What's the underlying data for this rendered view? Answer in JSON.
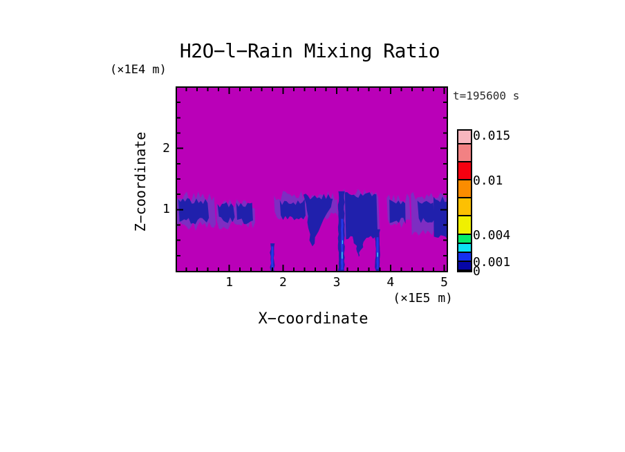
{
  "chart_data": {
    "type": "heatmap",
    "title": "H2O−l−Rain Mixing Ratio",
    "timestamp": "t=195600 s",
    "x_axis": {
      "label": "X−coordinate",
      "unit": "(×1E5 m)",
      "range": [
        0,
        5.07
      ],
      "major_ticks": [
        1,
        2,
        3,
        4,
        5
      ],
      "minor_step": 0.2
    },
    "z_axis": {
      "label": "Z−coordinate",
      "unit": "(×1E4 m)",
      "range": [
        0,
        3.0
      ],
      "major_ticks": [
        1,
        2
      ],
      "minor_step": 0.25
    },
    "colorbar": {
      "max_value": 0.0155,
      "levels": [
        0,
        0.001,
        0.002,
        0.003,
        0.004,
        0.006,
        0.008,
        0.01,
        0.012,
        0.014,
        0.0155
      ],
      "colors_bottom_to_top": [
        "#0606A8",
        "#1430F0",
        "#0CE2F4",
        "#06EC6A",
        "#F0F000",
        "#FDC002",
        "#FB8C00",
        "#F50010",
        "#F28183",
        "#F8B6BE"
      ],
      "labels": [
        {
          "text": "0.015",
          "value": 0.015
        },
        {
          "text": "0.01",
          "value": 0.01
        },
        {
          "text": "0.004",
          "value": 0.004
        },
        {
          "text": "0.001",
          "value": 0.001
        },
        {
          "text": "0",
          "value": 0
        }
      ]
    },
    "field": {
      "background_color": "#BA00B8",
      "palette": {
        "fringe": "#7E2DC2",
        "navy": "#2020AC",
        "royal": "#2438E8",
        "cyan": "#38C8F0"
      },
      "rain_patches": [
        {
          "kind": "fringe",
          "x0": 0.0,
          "x1": 0.75,
          "z0": 0.7,
          "z1": 1.24,
          "seed": 11
        },
        {
          "kind": "fringe",
          "x0": 0.76,
          "x1": 1.48,
          "z0": 0.74,
          "z1": 1.12,
          "seed": 12
        },
        {
          "kind": "fringe",
          "x0": 1.83,
          "x1": 3.02,
          "z0": 0.88,
          "z1": 1.25,
          "seed": 13
        },
        {
          "kind": "fringe",
          "x0": 3.1,
          "x1": 3.8,
          "z0": 0.55,
          "z1": 1.28,
          "seed": 14
        },
        {
          "kind": "fringe",
          "x0": 3.93,
          "x1": 4.37,
          "z0": 0.76,
          "z1": 1.2,
          "seed": 15
        },
        {
          "kind": "fringe",
          "x0": 4.38,
          "x1": 5.07,
          "z0": 0.62,
          "z1": 1.26,
          "seed": 16
        },
        {
          "kind": "cell",
          "x0": 0.05,
          "x1": 0.62,
          "z0": 0.8,
          "z1": 1.16,
          "seed": 21
        },
        {
          "kind": "cell",
          "x0": 0.78,
          "x1": 1.1,
          "z0": 0.82,
          "z1": 1.08,
          "seed": 22
        },
        {
          "kind": "cell",
          "x0": 1.13,
          "x1": 1.44,
          "z0": 0.8,
          "z1": 1.1,
          "seed": 23
        },
        {
          "kind": "cell",
          "x0": 1.94,
          "x1": 2.42,
          "z0": 0.84,
          "z1": 1.14,
          "seed": 24
        },
        {
          "kind": "vplume",
          "x0": 2.38,
          "x1": 2.96,
          "ztop": 1.22,
          "ax": 2.54,
          "az": 0.4,
          "seed": 25
        },
        {
          "kind": "cell",
          "x0": 3.15,
          "x1": 3.76,
          "z0": 0.55,
          "z1": 1.26,
          "seed": 26
        },
        {
          "kind": "tongue",
          "x0": 3.28,
          "x1": 3.56,
          "ztop": 0.6,
          "ax": 3.41,
          "az": 0.23,
          "seed": 27
        },
        {
          "kind": "cell",
          "x0": 3.98,
          "x1": 4.28,
          "z0": 0.8,
          "z1": 1.14,
          "seed": 28
        },
        {
          "kind": "cell",
          "x0": 4.5,
          "x1": 4.82,
          "z0": 0.8,
          "z1": 1.12,
          "seed": 29
        },
        {
          "kind": "cell",
          "x0": 4.8,
          "x1": 5.06,
          "z0": 0.55,
          "z1": 1.18,
          "seed": 30
        },
        {
          "kind": "shaft",
          "x0": 1.765,
          "x1": 1.835,
          "z0": 0,
          "z1": 0.45,
          "seed": 31
        },
        {
          "kind": "shaft",
          "x0": 3.03,
          "x1": 3.14,
          "z0": 0,
          "z1": 1.3,
          "seed": 32
        },
        {
          "kind": "shaft",
          "x0": 3.72,
          "x1": 3.8,
          "z0": 0,
          "z1": 0.68,
          "seed": 33
        },
        {
          "kind": "core",
          "x0": 1.78,
          "x1": 1.82,
          "z0": 0.02,
          "z1": 0.4,
          "seed": 41
        },
        {
          "kind": "core",
          "x0": 3.08,
          "x1": 3.12,
          "z0": 0.02,
          "z1": 0.85,
          "seed": 42
        },
        {
          "kind": "core",
          "x0": 3.74,
          "x1": 3.78,
          "z0": 0.03,
          "z1": 0.55,
          "seed": 43
        },
        {
          "kind": "dot",
          "x0": 3.09,
          "x1": 3.11,
          "z0": 0.2,
          "z1": 0.31
        },
        {
          "kind": "dot",
          "x0": 3.1,
          "x1": 3.115,
          "z0": 0.44,
          "z1": 0.5
        },
        {
          "kind": "dot",
          "x0": 3.75,
          "x1": 3.77,
          "z0": 0.23,
          "z1": 0.3
        }
      ]
    }
  }
}
